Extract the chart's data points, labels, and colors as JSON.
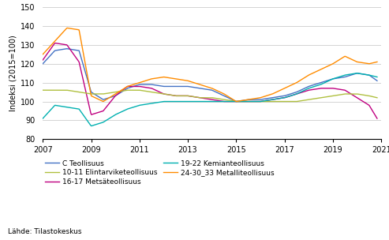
{
  "ylabel": "Indeksi (2015=100)",
  "source": "Lähde: Tilastokeskus",
  "xlim": [
    2007.0,
    2021.0
  ],
  "ylim": [
    80,
    150
  ],
  "yticks": [
    80,
    90,
    100,
    110,
    120,
    130,
    140,
    150
  ],
  "xticks": [
    2007,
    2009,
    2011,
    2013,
    2015,
    2017,
    2019,
    2021
  ],
  "series": {
    "C Teollisuus": {
      "color": "#4472C4",
      "data": [
        [
          2007.0,
          120
        ],
        [
          2007.5,
          127
        ],
        [
          2008.0,
          128
        ],
        [
          2008.5,
          127
        ],
        [
          2009.0,
          105
        ],
        [
          2009.5,
          101
        ],
        [
          2010.0,
          103
        ],
        [
          2010.5,
          107
        ],
        [
          2011.0,
          109
        ],
        [
          2011.5,
          109
        ],
        [
          2012.0,
          108
        ],
        [
          2012.5,
          108
        ],
        [
          2013.0,
          108
        ],
        [
          2013.5,
          107
        ],
        [
          2014.0,
          106
        ],
        [
          2014.5,
          103
        ],
        [
          2015.0,
          100
        ],
        [
          2015.5,
          101
        ],
        [
          2016.0,
          101
        ],
        [
          2016.5,
          102
        ],
        [
          2017.0,
          103
        ],
        [
          2017.5,
          105
        ],
        [
          2018.0,
          108
        ],
        [
          2018.5,
          110
        ],
        [
          2019.0,
          112
        ],
        [
          2019.5,
          113
        ],
        [
          2020.0,
          115
        ],
        [
          2020.5,
          114
        ],
        [
          2020.83,
          111
        ]
      ]
    },
    "16-17 Metsäteollisuus": {
      "color": "#C00080",
      "data": [
        [
          2007.0,
          122
        ],
        [
          2007.5,
          131
        ],
        [
          2008.0,
          130
        ],
        [
          2008.5,
          121
        ],
        [
          2009.0,
          93
        ],
        [
          2009.5,
          95
        ],
        [
          2010.0,
          103
        ],
        [
          2010.5,
          108
        ],
        [
          2011.0,
          108
        ],
        [
          2011.5,
          107
        ],
        [
          2012.0,
          104
        ],
        [
          2012.5,
          103
        ],
        [
          2013.0,
          103
        ],
        [
          2013.5,
          102
        ],
        [
          2014.0,
          101
        ],
        [
          2014.5,
          100
        ],
        [
          2015.0,
          100
        ],
        [
          2015.5,
          100
        ],
        [
          2016.0,
          100
        ],
        [
          2016.5,
          101
        ],
        [
          2017.0,
          102
        ],
        [
          2017.5,
          104
        ],
        [
          2018.0,
          106
        ],
        [
          2018.5,
          107
        ],
        [
          2019.0,
          107
        ],
        [
          2019.5,
          106
        ],
        [
          2020.0,
          102
        ],
        [
          2020.5,
          98
        ],
        [
          2020.83,
          91
        ]
      ]
    },
    "10-11 Elintarviketeollisuus": {
      "color": "#B0C040",
      "data": [
        [
          2007.0,
          106
        ],
        [
          2007.5,
          106
        ],
        [
          2008.0,
          106
        ],
        [
          2008.5,
          105
        ],
        [
          2009.0,
          104
        ],
        [
          2009.5,
          104
        ],
        [
          2010.0,
          105
        ],
        [
          2010.5,
          106
        ],
        [
          2011.0,
          106
        ],
        [
          2011.5,
          105
        ],
        [
          2012.0,
          104
        ],
        [
          2012.5,
          103
        ],
        [
          2013.0,
          103
        ],
        [
          2013.5,
          102
        ],
        [
          2014.0,
          102
        ],
        [
          2014.5,
          101
        ],
        [
          2015.0,
          100
        ],
        [
          2015.5,
          100
        ],
        [
          2016.0,
          100
        ],
        [
          2016.5,
          100
        ],
        [
          2017.0,
          100
        ],
        [
          2017.5,
          100
        ],
        [
          2018.0,
          101
        ],
        [
          2018.5,
          102
        ],
        [
          2019.0,
          103
        ],
        [
          2019.5,
          104
        ],
        [
          2020.0,
          104
        ],
        [
          2020.5,
          103
        ],
        [
          2020.83,
          102
        ]
      ]
    },
    "19-22 Kemianteollisuus": {
      "color": "#00B0B0",
      "data": [
        [
          2007.0,
          91
        ],
        [
          2007.5,
          98
        ],
        [
          2008.0,
          97
        ],
        [
          2008.5,
          96
        ],
        [
          2009.0,
          87
        ],
        [
          2009.5,
          89
        ],
        [
          2010.0,
          93
        ],
        [
          2010.5,
          96
        ],
        [
          2011.0,
          98
        ],
        [
          2011.5,
          99
        ],
        [
          2012.0,
          100
        ],
        [
          2012.5,
          100
        ],
        [
          2013.0,
          100
        ],
        [
          2013.5,
          100
        ],
        [
          2014.0,
          100
        ],
        [
          2014.5,
          100
        ],
        [
          2015.0,
          100
        ],
        [
          2015.5,
          100
        ],
        [
          2016.0,
          100
        ],
        [
          2016.5,
          101
        ],
        [
          2017.0,
          102
        ],
        [
          2017.5,
          104
        ],
        [
          2018.0,
          107
        ],
        [
          2018.5,
          109
        ],
        [
          2019.0,
          112
        ],
        [
          2019.5,
          114
        ],
        [
          2020.0,
          115
        ],
        [
          2020.5,
          114
        ],
        [
          2020.83,
          113
        ]
      ]
    },
    "24-30_33 Metalliteollisuus": {
      "color": "#FF8C00",
      "data": [
        [
          2007.0,
          125
        ],
        [
          2007.5,
          132
        ],
        [
          2008.0,
          139
        ],
        [
          2008.5,
          138
        ],
        [
          2009.0,
          103
        ],
        [
          2009.5,
          100
        ],
        [
          2010.0,
          104
        ],
        [
          2010.5,
          108
        ],
        [
          2011.0,
          110
        ],
        [
          2011.5,
          112
        ],
        [
          2012.0,
          113
        ],
        [
          2012.5,
          112
        ],
        [
          2013.0,
          111
        ],
        [
          2013.5,
          109
        ],
        [
          2014.0,
          107
        ],
        [
          2014.5,
          104
        ],
        [
          2015.0,
          100
        ],
        [
          2015.5,
          101
        ],
        [
          2016.0,
          102
        ],
        [
          2016.5,
          104
        ],
        [
          2017.0,
          107
        ],
        [
          2017.5,
          110
        ],
        [
          2018.0,
          114
        ],
        [
          2018.5,
          117
        ],
        [
          2019.0,
          120
        ],
        [
          2019.5,
          124
        ],
        [
          2020.0,
          121
        ],
        [
          2020.5,
          120
        ],
        [
          2020.83,
          121
        ]
      ]
    }
  }
}
